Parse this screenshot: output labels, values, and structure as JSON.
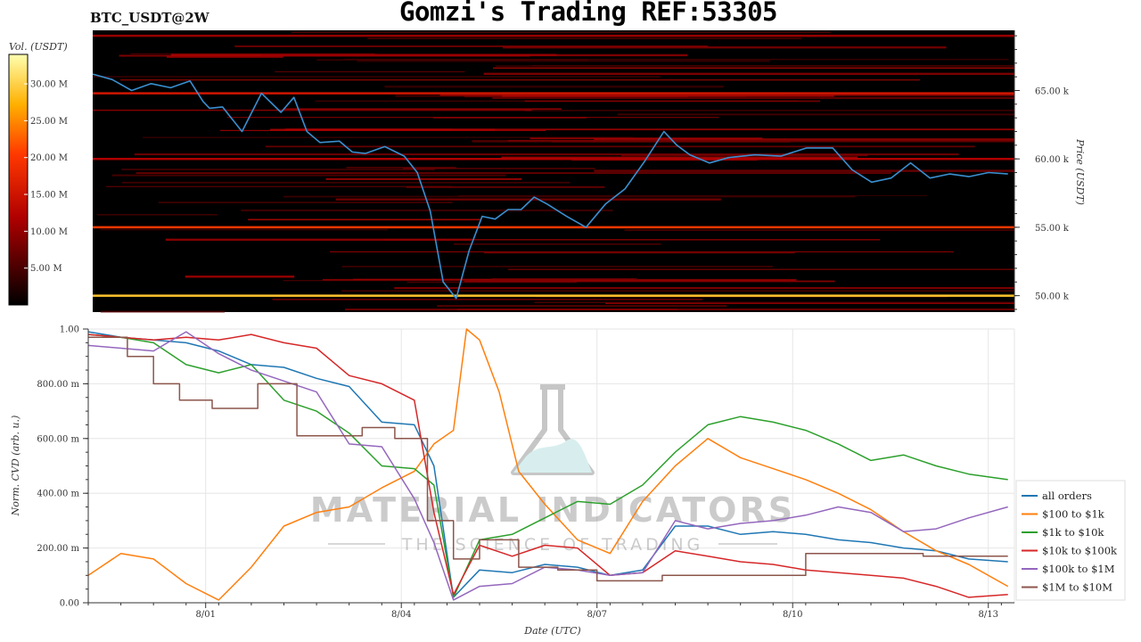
{
  "header": {
    "symbol": "BTC_USDT@2W",
    "title": "Gomzi's Trading REF:53305"
  },
  "watermark": {
    "line1": "MATERIAL INDICATORS",
    "line2": "THE SCIENCE OF TRADING"
  },
  "colors": {
    "price_line": "#3a8fd0",
    "heatmap_bg": "#000000",
    "series": [
      "#1f77b4",
      "#ff7f0e",
      "#2ca02c",
      "#d62728",
      "#9467bd",
      "#8c564b"
    ]
  },
  "chart_data": [
    {
      "type": "heatmap",
      "colorbar": {
        "label": "Vol. (USDT)",
        "ticks": [
          "5.00 M",
          "10.00 M",
          "15.00 M",
          "20.00 M",
          "25.00 M",
          "30.00 M"
        ],
        "tick_values": [
          5,
          10,
          15,
          20,
          25,
          30
        ],
        "range": [
          0,
          34
        ]
      },
      "ylabel": "Price (USDT)",
      "ylim": [
        48800,
        69400
      ],
      "yticks": [
        "50.00 k",
        "55.00 k",
        "60.00 k",
        "65.00 k"
      ],
      "ytick_values": [
        50000,
        55000,
        60000,
        65000
      ],
      "xlim": [
        0,
        14.2
      ],
      "orderbook_levels": [
        {
          "price": 50000,
          "intensity": 0.85
        },
        {
          "price": 55000,
          "intensity": 0.6
        },
        {
          "price": 60000,
          "intensity": 0.35
        },
        {
          "price": 64800,
          "intensity": 0.45
        },
        {
          "price": 69000,
          "intensity": 0.3
        }
      ],
      "series": [
        {
          "x": [
            0,
            0.3,
            0.6,
            0.9,
            1.2,
            1.5,
            1.7,
            1.8,
            2.0,
            2.3,
            2.6,
            2.9,
            3.1,
            3.3,
            3.5,
            3.8,
            4.0,
            4.2,
            4.5,
            4.8,
            5.0,
            5.2,
            5.4,
            5.6,
            5.8,
            6.0,
            6.2,
            6.4,
            6.6,
            6.8,
            7.0,
            7.3,
            7.6,
            7.9,
            8.2,
            8.5,
            8.8,
            9.0,
            9.2,
            9.5,
            9.8,
            10.2,
            10.6,
            11.0,
            11.4,
            11.7,
            12.0,
            12.3,
            12.6,
            12.9,
            13.2,
            13.5,
            13.8,
            14.1
          ],
          "y": [
            66200,
            65800,
            65000,
            65500,
            65200,
            65700,
            64200,
            63700,
            63800,
            62000,
            64800,
            63400,
            64500,
            62000,
            61200,
            61300,
            60500,
            60400,
            60900,
            60200,
            59000,
            56200,
            51000,
            49800,
            53300,
            55800,
            55600,
            56300,
            56300,
            57200,
            56700,
            55800,
            55000,
            56700,
            57800,
            59800,
            62000,
            61000,
            60300,
            59700,
            60100,
            60300,
            60200,
            60800,
            60800,
            59200,
            58300,
            58600,
            59700,
            58600,
            58900,
            58700,
            59000,
            58900
          ]
        }
      ]
    },
    {
      "type": "line",
      "xlabel": "Date (UTC)",
      "ylabel": "Norm. CVD (arb. u.)",
      "xlim": [
        0,
        14.2
      ],
      "ylim": [
        0,
        1
      ],
      "xticks": [
        "8/01",
        "8/04",
        "8/07",
        "8/10",
        "8/13"
      ],
      "xtick_values": [
        1.8,
        4.8,
        7.8,
        10.8,
        13.8
      ],
      "yticks": [
        "0.00",
        "200.00 m",
        "400.00 m",
        "600.00 m",
        "800.00 m",
        "1.00"
      ],
      "ytick_values": [
        0,
        0.2,
        0.4,
        0.6,
        0.8,
        1.0
      ],
      "grid": true,
      "legend_position": "right",
      "series": [
        {
          "name": "all orders",
          "x": [
            0,
            0.5,
            1.0,
            1.5,
            2.0,
            2.5,
            3.0,
            3.5,
            4.0,
            4.5,
            5.0,
            5.3,
            5.6,
            6.0,
            6.5,
            7.0,
            7.5,
            8.0,
            8.5,
            9.0,
            9.5,
            10.0,
            10.5,
            11.0,
            11.5,
            12.0,
            12.5,
            13.0,
            13.5,
            14.1
          ],
          "y": [
            0.99,
            0.97,
            0.96,
            0.95,
            0.92,
            0.87,
            0.86,
            0.82,
            0.79,
            0.66,
            0.65,
            0.5,
            0.02,
            0.12,
            0.11,
            0.14,
            0.13,
            0.1,
            0.12,
            0.28,
            0.28,
            0.25,
            0.26,
            0.25,
            0.23,
            0.22,
            0.2,
            0.19,
            0.16,
            0.15
          ]
        },
        {
          "name": "$100 to $1k",
          "x": [
            0,
            0.5,
            1.0,
            1.5,
            2.0,
            2.5,
            3.0,
            3.5,
            4.0,
            4.5,
            5.0,
            5.3,
            5.6,
            5.8,
            6.0,
            6.3,
            6.6,
            7.0,
            7.5,
            8.0,
            8.5,
            9.0,
            9.5,
            10.0,
            10.5,
            11.0,
            11.5,
            12.0,
            12.5,
            13.0,
            13.5,
            14.1
          ],
          "y": [
            0.1,
            0.18,
            0.16,
            0.07,
            0.01,
            0.13,
            0.28,
            0.33,
            0.35,
            0.42,
            0.48,
            0.58,
            0.63,
            1.0,
            0.96,
            0.77,
            0.48,
            0.36,
            0.23,
            0.18,
            0.37,
            0.5,
            0.6,
            0.53,
            0.49,
            0.45,
            0.4,
            0.34,
            0.26,
            0.19,
            0.14,
            0.06
          ]
        },
        {
          "name": "$1k to $10k",
          "x": [
            0,
            0.5,
            1.0,
            1.5,
            2.0,
            2.5,
            3.0,
            3.5,
            4.0,
            4.5,
            5.0,
            5.3,
            5.6,
            6.0,
            6.5,
            7.0,
            7.5,
            8.0,
            8.5,
            9.0,
            9.5,
            10.0,
            10.5,
            11.0,
            11.5,
            12.0,
            12.5,
            13.0,
            13.5,
            14.1
          ],
          "y": [
            0.98,
            0.97,
            0.95,
            0.87,
            0.84,
            0.87,
            0.74,
            0.7,
            0.62,
            0.5,
            0.49,
            0.43,
            0.02,
            0.23,
            0.25,
            0.31,
            0.37,
            0.36,
            0.43,
            0.55,
            0.65,
            0.68,
            0.66,
            0.63,
            0.58,
            0.52,
            0.54,
            0.5,
            0.47,
            0.45
          ]
        },
        {
          "name": "$10k to $100k",
          "x": [
            0,
            0.5,
            1.0,
            1.5,
            2.0,
            2.5,
            3.0,
            3.5,
            4.0,
            4.5,
            5.0,
            5.3,
            5.6,
            6.0,
            6.5,
            7.0,
            7.5,
            8.0,
            8.5,
            9.0,
            9.5,
            10.0,
            10.5,
            11.0,
            11.5,
            12.0,
            12.5,
            13.0,
            13.5,
            14.1
          ],
          "y": [
            0.98,
            0.97,
            0.96,
            0.97,
            0.96,
            0.98,
            0.95,
            0.93,
            0.83,
            0.8,
            0.74,
            0.33,
            0.03,
            0.21,
            0.17,
            0.21,
            0.2,
            0.1,
            0.11,
            0.19,
            0.17,
            0.15,
            0.14,
            0.12,
            0.11,
            0.1,
            0.09,
            0.06,
            0.02,
            0.03
          ]
        },
        {
          "name": "$100k to $1M",
          "x": [
            0,
            0.5,
            1.0,
            1.5,
            2.0,
            2.5,
            3.0,
            3.5,
            4.0,
            4.5,
            5.0,
            5.3,
            5.6,
            6.0,
            6.5,
            7.0,
            7.5,
            8.0,
            8.5,
            9.0,
            9.5,
            10.0,
            10.5,
            11.0,
            11.5,
            12.0,
            12.5,
            13.0,
            13.5,
            14.1
          ],
          "y": [
            0.94,
            0.93,
            0.92,
            0.99,
            0.91,
            0.85,
            0.81,
            0.77,
            0.58,
            0.57,
            0.38,
            0.22,
            0.01,
            0.06,
            0.07,
            0.13,
            0.12,
            0.1,
            0.11,
            0.3,
            0.27,
            0.29,
            0.3,
            0.32,
            0.35,
            0.33,
            0.26,
            0.27,
            0.31,
            0.35
          ]
        },
        {
          "name": "$1M to $10M",
          "x": [
            0,
            0.6,
            0.6,
            1.0,
            1.0,
            1.4,
            1.4,
            1.9,
            1.9,
            2.6,
            2.6,
            3.2,
            3.2,
            4.2,
            4.2,
            4.7,
            4.7,
            5.2,
            5.2,
            5.6,
            5.6,
            6.0,
            6.0,
            6.6,
            6.6,
            7.2,
            7.2,
            7.8,
            7.8,
            8.8,
            8.8,
            9.5,
            9.5,
            11.0,
            11.0,
            12.8,
            12.8,
            14.1
          ],
          "y": [
            0.97,
            0.97,
            0.9,
            0.9,
            0.8,
            0.8,
            0.74,
            0.74,
            0.71,
            0.71,
            0.8,
            0.8,
            0.61,
            0.61,
            0.64,
            0.64,
            0.6,
            0.6,
            0.3,
            0.3,
            0.16,
            0.16,
            0.23,
            0.23,
            0.13,
            0.13,
            0.12,
            0.12,
            0.08,
            0.08,
            0.1,
            0.1,
            0.1,
            0.1,
            0.18,
            0.18,
            0.17,
            0.17
          ]
        }
      ]
    }
  ]
}
